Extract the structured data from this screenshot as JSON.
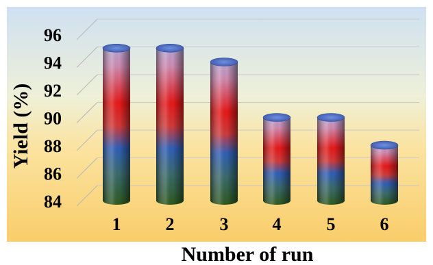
{
  "chart_data": {
    "type": "bar",
    "style": "3d-cylinder",
    "title": "",
    "xlabel": "Number of run",
    "ylabel": "Yield (%)",
    "categories": [
      "1",
      "2",
      "3",
      "4",
      "5",
      "6"
    ],
    "values": [
      95,
      95,
      94,
      90,
      90,
      88
    ],
    "ylim": [
      84,
      96
    ],
    "yticks": [
      "84",
      "86",
      "88",
      "90",
      "92",
      "94",
      "96"
    ],
    "grid": true,
    "legend": "none",
    "colors": {
      "background_top": "#cfe0f2",
      "background_bottom": "#f9cd6a",
      "cylinder_top": "#c8a4d0",
      "cylinder_red": "#e81818",
      "cylinder_blue": "#2f5fb8",
      "cylinder_green": "#2d5a1e",
      "cap": "#5a78c8"
    }
  }
}
